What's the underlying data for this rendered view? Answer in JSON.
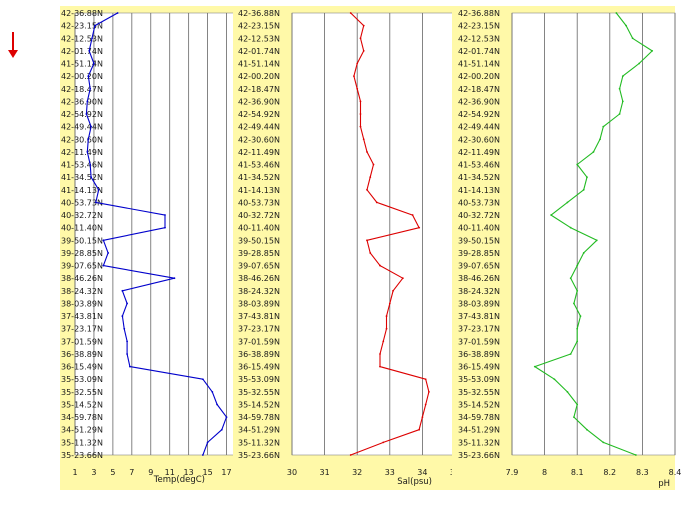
{
  "colors": {
    "panel_bg": "#FFF9A8",
    "temp": "#0000CC",
    "sal": "#DD0000",
    "ph": "#22BB22",
    "arrow": "#DD0000",
    "grid": "#666666"
  },
  "arrow_icon": "down-arrow-icon",
  "lat_labels": [
    "42-36.88N",
    "42-23.15N",
    "42-12.53N",
    "42-01.74N",
    "41-51.14N",
    "42-00.20N",
    "42-18.47N",
    "42-36.90N",
    "42-54.92N",
    "42-49.44N",
    "42-30.60N",
    "42-11.49N",
    "41-53.46N",
    "41-34.52N",
    "41-14.13N",
    "40-53.73N",
    "40-32.72N",
    "40-11.40N",
    "39-50.15N",
    "39-28.85N",
    "39-07.65N",
    "38-46.26N",
    "38-24.32N",
    "38-03.89N",
    "37-43.81N",
    "37-23.17N",
    "37-01.59N",
    "36-38.89N",
    "36-15.49N",
    "35-53.09N",
    "35-32.55N",
    "35-14.52N",
    "34-59.78N",
    "34-51.29N",
    "35-11.32N",
    "35-23.66N"
  ],
  "chart_data": [
    {
      "type": "line",
      "orientation": "vertical-profile",
      "xlabel": "Temp(degC)",
      "ticks": [
        "1",
        "3",
        "5",
        "7",
        "9",
        "11",
        "13",
        "15",
        "17"
      ],
      "xlim": [
        1,
        18
      ],
      "grid": true,
      "series": [
        {
          "values": [
            5.5,
            3.1,
            2.8,
            2.5,
            3.0,
            2.4,
            2.6,
            2.3,
            2.2,
            2.7,
            2.4,
            2.3,
            2.6,
            2.7,
            3.5,
            3.2,
            10.5,
            10.5,
            4.0,
            4.5,
            4.0,
            11.5,
            6.0,
            6.5,
            6.0,
            6.2,
            6.5,
            6.5,
            6.8,
            14.5,
            15.5,
            16.0,
            17.0,
            16.5,
            15.0,
            14.5
          ]
        }
      ]
    },
    {
      "type": "line",
      "orientation": "vertical-profile",
      "xlabel": "Sal(psu)",
      "ticks": [
        "30",
        "31",
        "32",
        "33",
        "34",
        "35"
      ],
      "xlim": [
        30,
        35
      ],
      "grid": true,
      "series": [
        {
          "values": [
            31.8,
            32.2,
            32.1,
            32.2,
            32.0,
            31.9,
            32.0,
            32.1,
            32.1,
            32.1,
            32.2,
            32.3,
            32.5,
            32.4,
            32.3,
            32.6,
            33.7,
            33.9,
            32.3,
            32.4,
            32.7,
            33.4,
            33.1,
            33.0,
            32.9,
            32.9,
            32.8,
            32.7,
            32.7,
            34.1,
            34.2,
            34.1,
            34.0,
            33.9,
            32.8,
            31.8
          ]
        }
      ]
    },
    {
      "type": "line",
      "orientation": "vertical-profile",
      "xlabel": "pH",
      "ticks": [
        "7.9",
        "8",
        "8.1",
        "8.2",
        "8.3",
        "8.4"
      ],
      "xlim": [
        7.9,
        8.4
      ],
      "grid": true,
      "series": [
        {
          "values": [
            8.22,
            8.25,
            8.27,
            8.33,
            8.29,
            8.24,
            8.23,
            8.24,
            8.23,
            8.18,
            8.17,
            8.15,
            8.1,
            8.13,
            8.12,
            8.07,
            8.02,
            8.08,
            8.16,
            8.12,
            8.1,
            8.08,
            8.1,
            8.09,
            8.11,
            8.1,
            8.1,
            8.08,
            7.97,
            8.03,
            8.07,
            8.1,
            8.09,
            8.13,
            8.18,
            8.28
          ]
        }
      ]
    }
  ]
}
